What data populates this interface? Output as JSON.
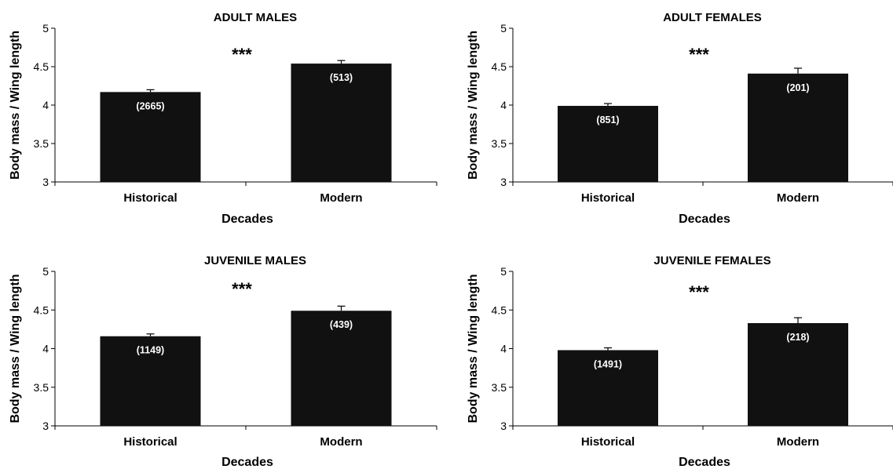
{
  "chart_data": [
    {
      "type": "bar",
      "title": "ADULT MALES",
      "xlabel": "Decades",
      "ylabel": "Body mass / Wing length",
      "ylim": [
        3,
        5
      ],
      "yticks": [
        "3",
        "3.5",
        "4",
        "4.5",
        "5"
      ],
      "categories": [
        "Historical",
        "Modern"
      ],
      "values": [
        4.17,
        4.54
      ],
      "errors": [
        0.03,
        0.04
      ],
      "n_labels": [
        "(2665)",
        "(513)"
      ],
      "significance": "***",
      "bar_color": "#111111"
    },
    {
      "type": "bar",
      "title": "ADULT FEMALES",
      "xlabel": "Decades",
      "ylabel": "Body mass / Wing length",
      "ylim": [
        3,
        5
      ],
      "yticks": [
        "3",
        "3.5",
        "4",
        "4.5",
        "5"
      ],
      "categories": [
        "Historical",
        "Modern"
      ],
      "values": [
        3.99,
        4.41
      ],
      "errors": [
        0.03,
        0.07
      ],
      "n_labels": [
        "(851)",
        "(201)"
      ],
      "significance": "***",
      "bar_color": "#111111"
    },
    {
      "type": "bar",
      "title": "JUVENILE MALES",
      "xlabel": "Decades",
      "ylabel": "Body mass / Wing length",
      "ylim": [
        3,
        5
      ],
      "yticks": [
        "3",
        "3.5",
        "4",
        "4.5",
        "5"
      ],
      "categories": [
        "Historical",
        "Modern"
      ],
      "values": [
        4.16,
        4.49
      ],
      "errors": [
        0.03,
        0.06
      ],
      "n_labels": [
        "(1149)",
        "(439)"
      ],
      "significance": "***",
      "bar_color": "#111111"
    },
    {
      "type": "bar",
      "title": "JUVENILE FEMALES",
      "xlabel": "Decades",
      "ylabel": "Body mass / Wing length",
      "ylim": [
        3,
        5
      ],
      "yticks": [
        "3",
        "3.5",
        "4",
        "4.5",
        "5"
      ],
      "categories": [
        "Historical",
        "Modern"
      ],
      "values": [
        3.98,
        4.33
      ],
      "errors": [
        0.03,
        0.07
      ],
      "n_labels": [
        "(1491)",
        "(218)"
      ],
      "significance": "***",
      "bar_color": "#111111"
    }
  ]
}
